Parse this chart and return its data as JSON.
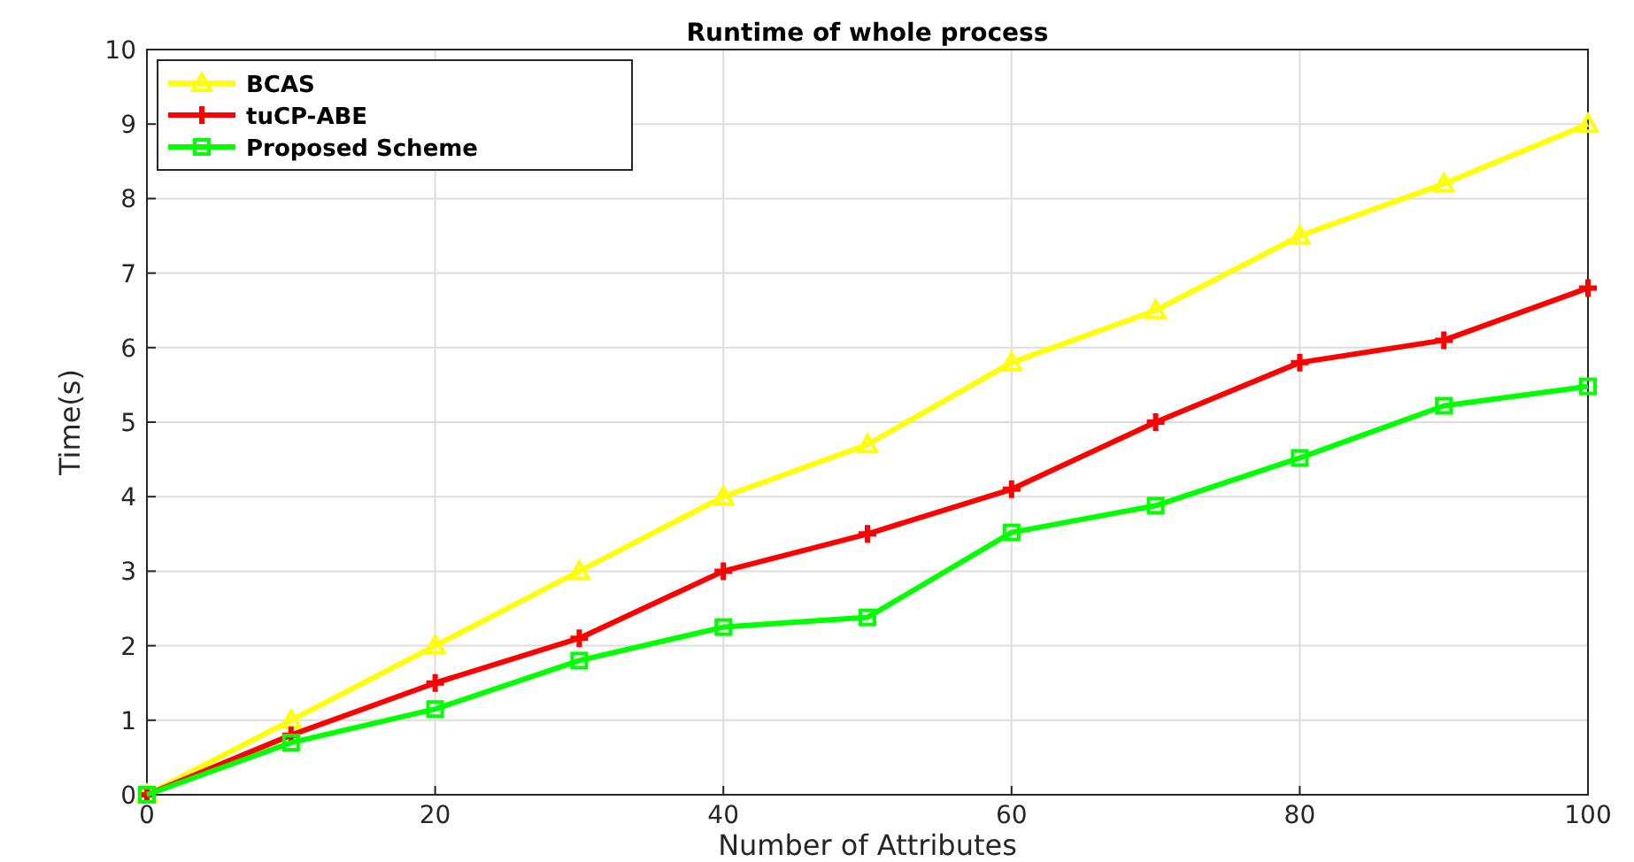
{
  "chart_data": {
    "type": "line",
    "title": "Runtime of whole process",
    "xlabel": "Number of Attributes",
    "ylabel": "Time(s)",
    "x": [
      0,
      10,
      20,
      30,
      40,
      50,
      60,
      70,
      80,
      90,
      100
    ],
    "series": [
      {
        "name": "BCAS",
        "color": "#ffff00",
        "marker": "triangle",
        "values": [
          0,
          1.0,
          2.0,
          3.0,
          4.0,
          4.7,
          5.8,
          6.5,
          7.5,
          8.2,
          9.0
        ]
      },
      {
        "name": "tuCP-ABE",
        "color": "#ff0000",
        "marker": "cross",
        "values": [
          0,
          0.8,
          1.5,
          2.1,
          3.0,
          3.5,
          4.1,
          5.0,
          5.8,
          6.1,
          6.8
        ]
      },
      {
        "name": "Proposed Scheme",
        "color": "#00ff00",
        "marker": "square",
        "values": [
          0,
          0.7,
          1.15,
          1.8,
          2.25,
          2.38,
          3.52,
          3.88,
          4.52,
          5.22,
          5.48
        ]
      }
    ],
    "xlim": [
      0,
      100
    ],
    "xticks": [
      0,
      20,
      40,
      60,
      80,
      100
    ],
    "ylim": [
      0,
      10
    ],
    "yticks": [
      0,
      1,
      2,
      3,
      4,
      5,
      6,
      7,
      8,
      9,
      10
    ],
    "grid": true,
    "legend": "top left",
    "line_style": "solid"
  }
}
